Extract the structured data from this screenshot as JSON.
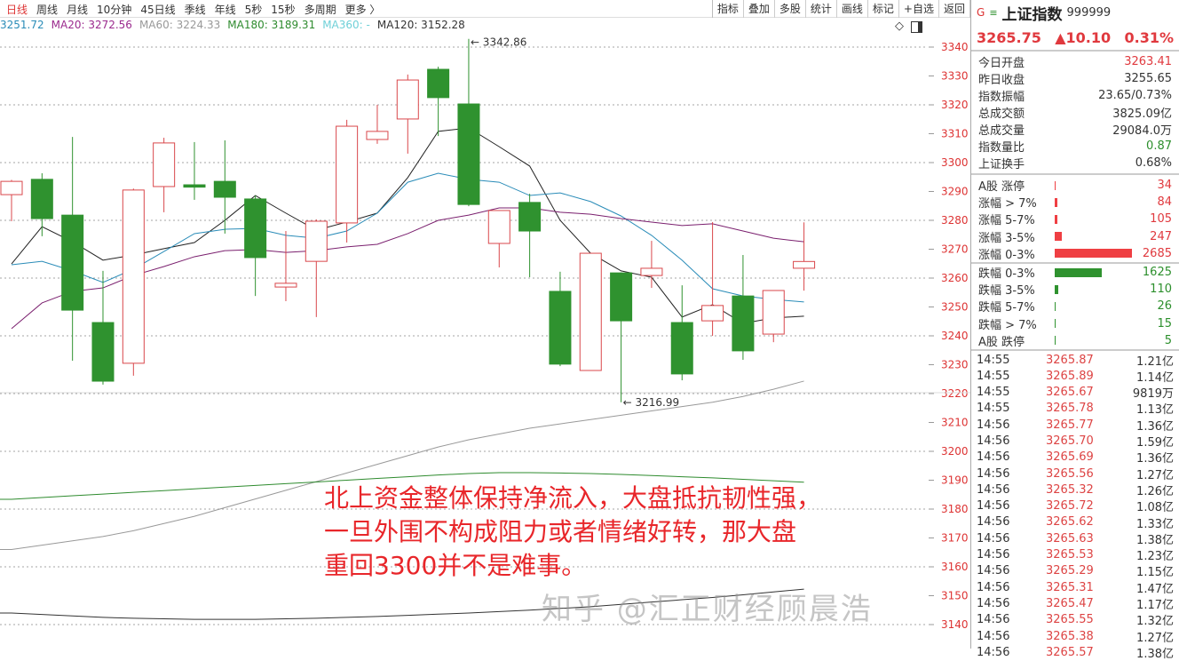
{
  "toolbar": {
    "periods": [
      "日线",
      "周线",
      "月线",
      "10分钟",
      "45日线",
      "季线",
      "年线",
      "5秒",
      "15秒",
      "多周期",
      "更多 〉"
    ],
    "active_period": "日线",
    "tools": [
      "指标",
      "叠加",
      "多股",
      "统计",
      "画线",
      "标记",
      "+自选",
      "返回"
    ]
  },
  "legend": [
    {
      "text": "3251.72",
      "color": "#2a8cb8"
    },
    {
      "text": "MA20: 3272.56",
      "color": "#9b2a8e"
    },
    {
      "text": "MA60: 3224.33",
      "color": "#999999"
    },
    {
      "text": "MA180: 3189.31",
      "color": "#2e8b2e"
    },
    {
      "text": "MA360: -",
      "color": "#6fd0d8"
    },
    {
      "text": "MA120: 3152.28",
      "color": "#333333"
    }
  ],
  "chart_icons": [
    "diamond-icon",
    "panel-toggle-icon"
  ],
  "annotation": "北上资金整体保持净流入，大盘抵抗韧性强，\n一旦外围不构成阻力或者情绪好转，那大盘\n重回3300并不是难事。",
  "watermark": "知乎 @汇正财经顾晨浩",
  "colors": {
    "up": "#d9474b",
    "down": "#2f922f",
    "ma5": "#222222",
    "ma10": "#2a8cb8",
    "ma20": "#7a1f6e",
    "ma60": "#999999",
    "ma180": "#2e8b2e",
    "ma120": "#333333",
    "axis_text": "#d33"
  },
  "chart_data": {
    "type": "candlestick",
    "ylim": [
      3135,
      3345
    ],
    "yticks": [
      3140,
      3150,
      3160,
      3170,
      3180,
      3190,
      3200,
      3210,
      3220,
      3230,
      3240,
      3250,
      3260,
      3270,
      3280,
      3290,
      3300,
      3310,
      3320,
      3330,
      3340
    ],
    "grid": true,
    "annotations": [
      {
        "label": "3342.86",
        "index": 15,
        "value": 3342.86
      },
      {
        "label": "3216.99",
        "index": 20,
        "value": 3216.99
      }
    ],
    "candles": [
      {
        "o": 3288.9,
        "h": 3294.0,
        "l": 3279.7,
        "c": 3293.5
      },
      {
        "o": 3294.2,
        "h": 3296.3,
        "l": 3274.5,
        "c": 3280.6
      },
      {
        "o": 3281.8,
        "h": 3308.9,
        "l": 3231.4,
        "c": 3248.9
      },
      {
        "o": 3244.6,
        "h": 3262.5,
        "l": 3223.1,
        "c": 3224.3
      },
      {
        "o": 3230.5,
        "h": 3291.0,
        "l": 3226.2,
        "c": 3290.5
      },
      {
        "o": 3291.7,
        "h": 3308.6,
        "l": 3282.8,
        "c": 3306.8
      },
      {
        "o": 3292.3,
        "h": 3307.1,
        "l": 3287.1,
        "c": 3291.5
      },
      {
        "o": 3293.5,
        "h": 3307.7,
        "l": 3275.4,
        "c": 3288.0
      },
      {
        "o": 3287.4,
        "h": 3288.6,
        "l": 3253.8,
        "c": 3267.1
      },
      {
        "o": 3256.9,
        "h": 3276.3,
        "l": 3252.0,
        "c": 3258.2
      },
      {
        "o": 3265.8,
        "h": 3280.3,
        "l": 3246.5,
        "c": 3279.7
      },
      {
        "o": 3279.1,
        "h": 3314.8,
        "l": 3272.3,
        "c": 3312.6
      },
      {
        "o": 3308.0,
        "h": 3320.0,
        "l": 3306.5,
        "c": 3310.8
      },
      {
        "o": 3315.1,
        "h": 3330.5,
        "l": 3303.1,
        "c": 3328.6
      },
      {
        "o": 3332.3,
        "h": 3333.2,
        "l": 3309.2,
        "c": 3322.5
      },
      {
        "o": 3320.3,
        "h": 3342.86,
        "l": 3284.9,
        "c": 3285.5
      },
      {
        "o": 3272.0,
        "h": 3283.4,
        "l": 3263.7,
        "c": 3283.4
      },
      {
        "o": 3286.2,
        "h": 3289.2,
        "l": 3260.3,
        "c": 3276.3
      },
      {
        "o": 3255.4,
        "h": 3262.2,
        "l": 3229.5,
        "c": 3230.2
      },
      {
        "o": 3228.0,
        "h": 3268.6,
        "l": 3228.0,
        "c": 3268.6
      },
      {
        "o": 3261.8,
        "h": 3262.0,
        "l": 3216.99,
        "c": 3245.2
      },
      {
        "o": 3260.9,
        "h": 3272.9,
        "l": 3256.6,
        "c": 3263.4
      },
      {
        "o": 3244.6,
        "h": 3257.5,
        "l": 3224.6,
        "c": 3226.8
      },
      {
        "o": 3245.2,
        "h": 3279.4,
        "l": 3240.0,
        "c": 3250.5
      },
      {
        "o": 3253.8,
        "h": 3268.0,
        "l": 3231.7,
        "c": 3234.8
      },
      {
        "o": 3240.6,
        "h": 3255.7,
        "l": 3237.8,
        "c": 3255.7
      },
      {
        "o": 3263.41,
        "h": 3279.3,
        "l": 3255.65,
        "c": 3265.75
      }
    ],
    "series": [
      {
        "key": "ma5",
        "values": [
          3264.9,
          3277.8,
          3272.6,
          3266.2,
          3268,
          3270.2,
          3272.3,
          3280,
          3288.6,
          3282.5,
          3276.6,
          3279.4,
          3282.5,
          3294.8,
          3310.8,
          3312,
          3305.5,
          3298.8,
          3280,
          3268.6,
          3262.5,
          3260.3,
          3246.5,
          3250.8,
          3244.3,
          3246.2,
          3246.8
        ]
      },
      {
        "key": "ma10",
        "values": [
          3264.6,
          3265.8,
          3262.5,
          3258.5,
          3263.1,
          3269.2,
          3275.4,
          3276.9,
          3277.2,
          3274.8,
          3273.8,
          3276.3,
          3282.5,
          3293.2,
          3296.3,
          3294.2,
          3293.2,
          3288.6,
          3289.5,
          3286.5,
          3281.5,
          3274.8,
          3266.2,
          3256.3,
          3253.8,
          3252.6,
          3251.72
        ]
      },
      {
        "key": "ma20",
        "values": [
          3242.5,
          3251.4,
          3255.4,
          3256.6,
          3260.9,
          3264,
          3267.4,
          3269.5,
          3269.9,
          3268.9,
          3269.5,
          3270.8,
          3271.7,
          3275.4,
          3280,
          3281.8,
          3284.3,
          3284.3,
          3282.8,
          3282.1,
          3280.6,
          3279.4,
          3278.2,
          3278.8,
          3276.3,
          3273.8,
          3272.56
        ]
      },
      {
        "key": "ma60",
        "values": [
          3166,
          3167.5,
          3169,
          3170.5,
          3172.5,
          3175,
          3177.5,
          3180.5,
          3183.5,
          3186.5,
          3189.5,
          3192.5,
          3195.5,
          3198.5,
          3201.5,
          3204,
          3206,
          3208,
          3209.5,
          3211,
          3212.5,
          3214,
          3215.5,
          3217,
          3219,
          3221.5,
          3224.33
        ]
      },
      {
        "key": "ma180",
        "values": [
          3183.4,
          3184,
          3184.6,
          3185.2,
          3185.8,
          3186.4,
          3187,
          3187.6,
          3188.2,
          3188.8,
          3189.4,
          3190,
          3190.6,
          3191.2,
          3191.8,
          3192.3,
          3192.6,
          3192.6,
          3192.5,
          3192.3,
          3192,
          3191.6,
          3191.2,
          3190.8,
          3190.3,
          3189.8,
          3189.31
        ]
      },
      {
        "key": "ma120",
        "values": [
          3144,
          3143.5,
          3143,
          3142.5,
          3142.2,
          3142,
          3141.8,
          3141.8,
          3141.8,
          3142,
          3142.2,
          3142.5,
          3142.8,
          3143.2,
          3143.6,
          3144,
          3144.5,
          3145,
          3145.6,
          3146.2,
          3147,
          3147.8,
          3148.6,
          3149.4,
          3150.3,
          3151.3,
          3152.28
        ]
      }
    ]
  },
  "quote": {
    "marker": "G",
    "menu_icon": "≡",
    "name": "上证指数",
    "code": "999999",
    "price": "3265.75",
    "change": "▲10.10",
    "pct": "0.31%"
  },
  "stats": [
    {
      "label": "今日开盘",
      "value": "3263.41",
      "color": "red"
    },
    {
      "label": "昨日收盘",
      "value": "3255.65",
      "color": ""
    },
    {
      "label": "指数振幅",
      "value": "23.65/0.73%",
      "color": ""
    },
    {
      "label": "总成交额",
      "value": "3825.09亿",
      "color": ""
    },
    {
      "label": "总成交量",
      "value": "29084.0万",
      "color": ""
    },
    {
      "label": "指数量比",
      "value": "0.87",
      "color": "green"
    },
    {
      "label": "上证换手",
      "value": "0.68%",
      "color": ""
    }
  ],
  "up_counts": [
    {
      "label": "A股 涨停",
      "value": "34",
      "n": 34
    },
    {
      "label": "涨幅 > 7%",
      "value": "84",
      "n": 84
    },
    {
      "label": "涨幅 5-7%",
      "value": "105",
      "n": 105
    },
    {
      "label": "涨幅 3-5%",
      "value": "247",
      "n": 247
    },
    {
      "label": "涨幅 0-3%",
      "value": "2685",
      "n": 2685
    }
  ],
  "down_counts": [
    {
      "label": "跌幅 0-3%",
      "value": "1625",
      "n": 1625
    },
    {
      "label": "跌幅 3-5%",
      "value": "110",
      "n": 110
    },
    {
      "label": "跌幅 5-7%",
      "value": "26",
      "n": 26
    },
    {
      "label": "跌幅 > 7%",
      "value": "15",
      "n": 15
    },
    {
      "label": "A股 跌停",
      "value": "5",
      "n": 5
    }
  ],
  "ticks": [
    {
      "t": "14:55",
      "p": "3265.87",
      "v": "1.21亿"
    },
    {
      "t": "14:55",
      "p": "3265.89",
      "v": "1.14亿"
    },
    {
      "t": "14:55",
      "p": "3265.67",
      "v": "9819万"
    },
    {
      "t": "14:55",
      "p": "3265.78",
      "v": "1.13亿"
    },
    {
      "t": "14:56",
      "p": "3265.77",
      "v": "1.36亿"
    },
    {
      "t": "14:56",
      "p": "3265.70",
      "v": "1.59亿"
    },
    {
      "t": "14:56",
      "p": "3265.69",
      "v": "1.36亿"
    },
    {
      "t": "14:56",
      "p": "3265.56",
      "v": "1.27亿"
    },
    {
      "t": "14:56",
      "p": "3265.32",
      "v": "1.26亿"
    },
    {
      "t": "14:56",
      "p": "3265.72",
      "v": "1.08亿"
    },
    {
      "t": "14:56",
      "p": "3265.62",
      "v": "1.33亿"
    },
    {
      "t": "14:56",
      "p": "3265.63",
      "v": "1.38亿"
    },
    {
      "t": "14:56",
      "p": "3265.53",
      "v": "1.23亿"
    },
    {
      "t": "14:56",
      "p": "3265.29",
      "v": "1.15亿"
    },
    {
      "t": "14:56",
      "p": "3265.31",
      "v": "1.47亿"
    },
    {
      "t": "14:56",
      "p": "3265.47",
      "v": "1.17亿"
    },
    {
      "t": "14:56",
      "p": "3265.55",
      "v": "1.32亿"
    },
    {
      "t": "14:56",
      "p": "3265.38",
      "v": "1.27亿"
    },
    {
      "t": "14:56",
      "p": "3265.57",
      "v": "1.38亿"
    }
  ]
}
